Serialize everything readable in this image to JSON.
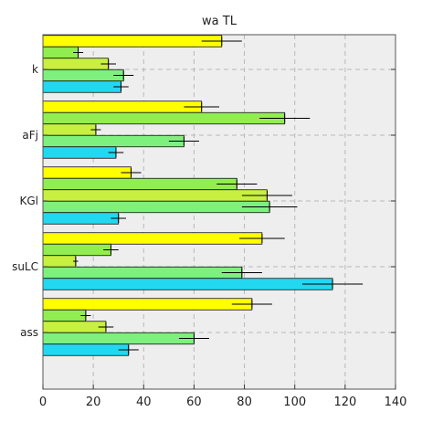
{
  "chart_data": {
    "type": "bar",
    "orientation": "horizontal",
    "title": "wa TL",
    "xlabel": "",
    "ylabel": "",
    "xlim": [
      0,
      140
    ],
    "xticks": [
      "0",
      "20",
      "40",
      "60",
      "80",
      "100",
      "120",
      "140"
    ],
    "grid": true,
    "categories": [
      "k",
      "aFj",
      "KGl",
      "suLC",
      "ass"
    ],
    "bar_colors": [
      "#ffff00",
      "#90ee50",
      "#c8f040",
      "#7ef07e",
      "#22d8f0"
    ],
    "series": [
      {
        "color": "#ffff00",
        "values": [
          71,
          63,
          35,
          87,
          83
        ],
        "errors": [
          8,
          7,
          4,
          9,
          8
        ]
      },
      {
        "color": "#90ee50",
        "values": [
          14,
          96,
          77,
          27,
          17
        ],
        "errors": [
          2,
          10,
          8,
          3,
          2
        ]
      },
      {
        "color": "#c8f040",
        "values": [
          26,
          21,
          89,
          13,
          25
        ],
        "errors": [
          3,
          2,
          10,
          1,
          3
        ]
      },
      {
        "color": "#7ef07e",
        "values": [
          32,
          56,
          90,
          79,
          60
        ],
        "errors": [
          4,
          6,
          11,
          8,
          6
        ]
      },
      {
        "color": "#22d8f0",
        "values": [
          31,
          29,
          30,
          115,
          34
        ],
        "errors": [
          3,
          3,
          3,
          12,
          4
        ]
      }
    ]
  }
}
